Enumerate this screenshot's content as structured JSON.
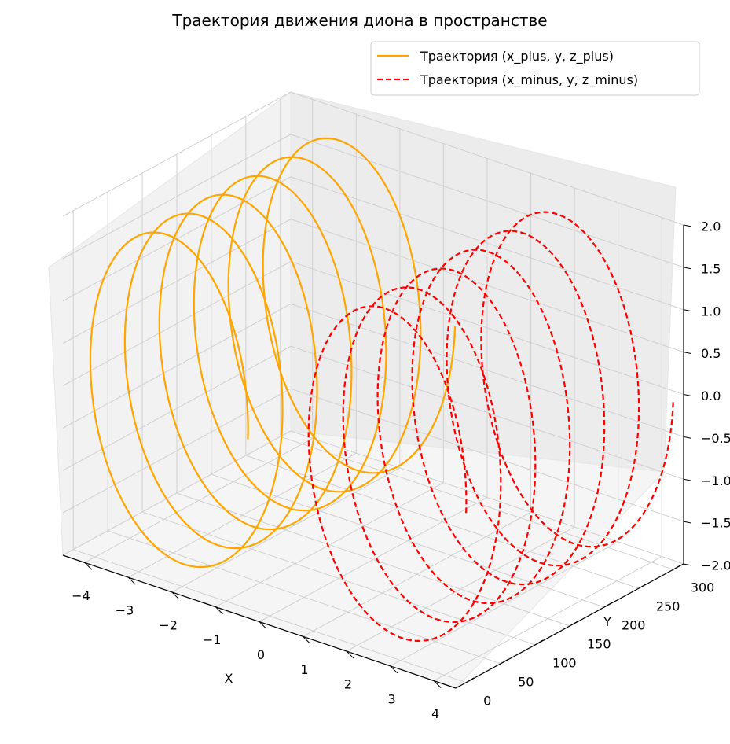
{
  "chart_data": {
    "type": "line",
    "projection": "3d",
    "title": "Траектория движения диона в пространстве",
    "xlabel": "X",
    "ylabel": "Y",
    "zlabel": "",
    "xlim": [
      -4.5,
      4.5
    ],
    "ylim": [
      -15,
      315
    ],
    "zlim": [
      -2,
      2
    ],
    "x_ticks": [
      "−4",
      "−3",
      "−2",
      "−1",
      "0",
      "1",
      "2",
      "3",
      "4"
    ],
    "y_ticks": [
      "0",
      "50",
      "100",
      "150",
      "200",
      "250",
      "300"
    ],
    "z_ticks": [
      "−2.0",
      "−1.5",
      "−1.0",
      "−0.5",
      "0.0",
      "0.5",
      "1.0",
      "1.5",
      "2.0"
    ],
    "grid": true,
    "legend": "top-right",
    "series": [
      {
        "name": "Траектория (x_plus, y, z_plus)",
        "color": "#ffa500",
        "style": "solid",
        "helix": {
          "x_center": -2.5,
          "radius": 2.0,
          "y_start": 0,
          "y_end": 300,
          "turns": 6
        }
      },
      {
        "name": "Траектория (x_minus, y, z_minus)",
        "color": "#ff0000",
        "style": "dashed",
        "helix": {
          "x_center": 2.5,
          "radius": 2.0,
          "y_start": 0,
          "y_end": 300,
          "turns": 6
        }
      }
    ]
  }
}
